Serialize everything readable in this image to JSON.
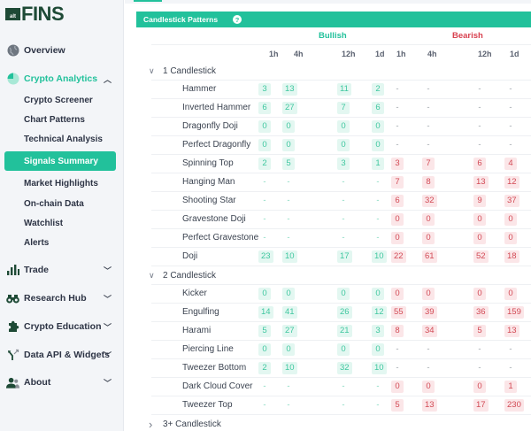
{
  "app": {
    "logo_prefix": "alt",
    "logo_text": "FINS"
  },
  "sidebar": {
    "items": [
      {
        "label": "Overview",
        "icon": "globe-icon"
      },
      {
        "label": "Crypto Analytics",
        "icon": "pie-chart-icon",
        "expanded": true,
        "children": [
          {
            "label": "Crypto Screener"
          },
          {
            "label": "Chart Patterns"
          },
          {
            "label": "Technical Analysis"
          },
          {
            "label": "Signals Summary",
            "selected": true
          },
          {
            "label": "Market Highlights"
          },
          {
            "label": "On-chain Data"
          },
          {
            "label": "Watchlist"
          },
          {
            "label": "Alerts"
          }
        ]
      },
      {
        "label": "Trade",
        "icon": "bar-chart-icon"
      },
      {
        "label": "Research Hub",
        "icon": "binoculars-icon"
      },
      {
        "label": "Crypto Education",
        "icon": "puzzle-icon"
      },
      {
        "label": "Data API & Widgets",
        "icon": "api-arrows-icon"
      },
      {
        "label": "About",
        "icon": "people-icon"
      }
    ],
    "chevron_up": "︿",
    "chevron_down": "﹀"
  },
  "panel": {
    "title": "Candlestick Patterns",
    "help": "?",
    "groups": {
      "bullish": "Bullish",
      "bearish": "Bearish"
    },
    "columns": [
      "1h",
      "4h",
      "12h",
      "1d",
      "1h",
      "4h",
      "12h",
      "1d"
    ],
    "colors": {
      "accent": "#22c19b",
      "bearish": "#d8414f"
    },
    "sections": [
      {
        "label": "1 Candlestick",
        "expanded": true,
        "rows": [
          {
            "name": "Hammer",
            "bull": [
              "3",
              "13",
              "11",
              "2"
            ],
            "bear": [
              "-",
              "-",
              "-",
              "-"
            ]
          },
          {
            "name": "Inverted Hammer",
            "bull": [
              "6",
              "27",
              "7",
              "6"
            ],
            "bear": [
              "-",
              "-",
              "-",
              "-"
            ]
          },
          {
            "name": "Dragonfly Doji",
            "bull": [
              "0",
              "0",
              "0",
              "0"
            ],
            "bear": [
              "-",
              "-",
              "-",
              "-"
            ]
          },
          {
            "name": "Perfect Dragonfly",
            "bull": [
              "0",
              "0",
              "0",
              "0"
            ],
            "bear": [
              "-",
              "-",
              "-",
              "-"
            ]
          },
          {
            "name": "Spinning Top",
            "bull": [
              "2",
              "5",
              "3",
              "1"
            ],
            "bear": [
              "3",
              "7",
              "6",
              "4"
            ]
          },
          {
            "name": "Hanging Man",
            "bull": [
              "-",
              "-",
              "-",
              "-"
            ],
            "bear": [
              "7",
              "8",
              "13",
              "12"
            ]
          },
          {
            "name": "Shooting Star",
            "bull": [
              "-",
              "-",
              "-",
              "-"
            ],
            "bear": [
              "6",
              "32",
              "9",
              "37"
            ]
          },
          {
            "name": "Gravestone Doji",
            "bull": [
              "-",
              "-",
              "-",
              "-"
            ],
            "bear": [
              "0",
              "0",
              "0",
              "0"
            ]
          },
          {
            "name": "Perfect Gravestone",
            "bull": [
              "-",
              "-",
              "-",
              "-"
            ],
            "bear": [
              "0",
              "0",
              "0",
              "0"
            ]
          },
          {
            "name": "Doji",
            "bull": [
              "23",
              "10",
              "17",
              "10"
            ],
            "bear": [
              "22",
              "61",
              "52",
              "18"
            ]
          }
        ]
      },
      {
        "label": "2 Candlestick",
        "expanded": true,
        "rows": [
          {
            "name": "Kicker",
            "bull": [
              "0",
              "0",
              "0",
              "0"
            ],
            "bear": [
              "0",
              "0",
              "0",
              "0"
            ]
          },
          {
            "name": "Engulfing",
            "bull": [
              "14",
              "41",
              "26",
              "12"
            ],
            "bear": [
              "55",
              "39",
              "36",
              "159"
            ]
          },
          {
            "name": "Harami",
            "bull": [
              "5",
              "27",
              "21",
              "3"
            ],
            "bear": [
              "8",
              "34",
              "5",
              "13"
            ]
          },
          {
            "name": "Piercing Line",
            "bull": [
              "0",
              "0",
              "0",
              "0"
            ],
            "bear": [
              "-",
              "-",
              "-",
              "-"
            ]
          },
          {
            "name": "Tweezer Bottom",
            "bull": [
              "2",
              "10",
              "32",
              "10"
            ],
            "bear": [
              "-",
              "-",
              "-",
              "-"
            ]
          },
          {
            "name": "Dark Cloud Cover",
            "bull": [
              "-",
              "-",
              "-",
              "-"
            ],
            "bear": [
              "0",
              "0",
              "0",
              "1"
            ]
          },
          {
            "name": "Tweezer Top",
            "bull": [
              "-",
              "-",
              "-",
              "-"
            ],
            "bear": [
              "5",
              "13",
              "17",
              "230"
            ]
          }
        ]
      },
      {
        "label": "3+ Candlestick",
        "expanded": false,
        "rows": []
      }
    ]
  }
}
